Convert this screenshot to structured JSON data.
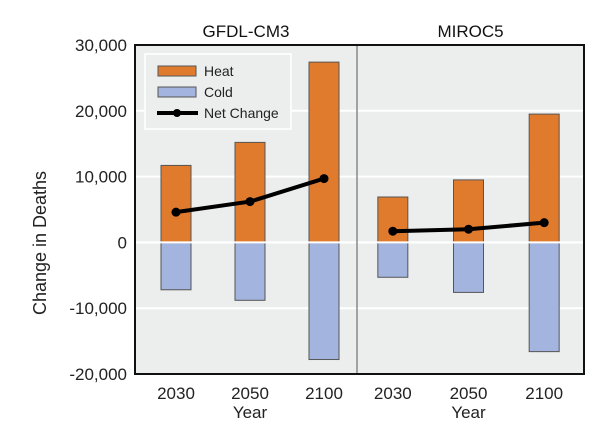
{
  "chart_data": {
    "type": "bar",
    "ylabel": "Change in Deaths",
    "ylim": [
      -20000,
      30000
    ],
    "yticks": [
      30000,
      20000,
      10000,
      0,
      -10000,
      -20000
    ],
    "ytick_labels": [
      "30,000",
      "20,000",
      "10,000",
      "0",
      "-10,000",
      "-20,000"
    ],
    "grid": true,
    "legend": {
      "placement": "top-left",
      "entries": [
        {
          "name": "Heat",
          "kind": "bar",
          "color": "#e07b2e"
        },
        {
          "name": "Cold",
          "kind": "bar",
          "color": "#a3b4de"
        },
        {
          "name": "Net Change",
          "kind": "line",
          "color": "#000000"
        }
      ]
    },
    "colors": {
      "heat": "#e07b2e",
      "cold": "#a3b4de",
      "net": "#000000",
      "plot_bg": "#eceeee",
      "grid": "#ffffff",
      "bar_edge": "#555555"
    },
    "panels": [
      {
        "title": "GFDL-CM3",
        "xlabel": "Year",
        "categories": [
          "2030",
          "2050",
          "2100"
        ],
        "series": [
          {
            "name": "Heat",
            "values": [
              11700,
              15200,
              27400
            ]
          },
          {
            "name": "Cold",
            "values": [
              -7200,
              -8800,
              -17800
            ]
          },
          {
            "name": "Net Change",
            "values": [
              4600,
              6200,
              9700
            ]
          }
        ]
      },
      {
        "title": "MIROC5",
        "xlabel": "Year",
        "categories": [
          "2030",
          "2050",
          "2100"
        ],
        "series": [
          {
            "name": "Heat",
            "values": [
              6900,
              9500,
              19500
            ]
          },
          {
            "name": "Cold",
            "values": [
              -5300,
              -7600,
              -16600
            ]
          },
          {
            "name": "Net Change",
            "values": [
              1700,
              2000,
              3000
            ]
          }
        ]
      }
    ]
  }
}
